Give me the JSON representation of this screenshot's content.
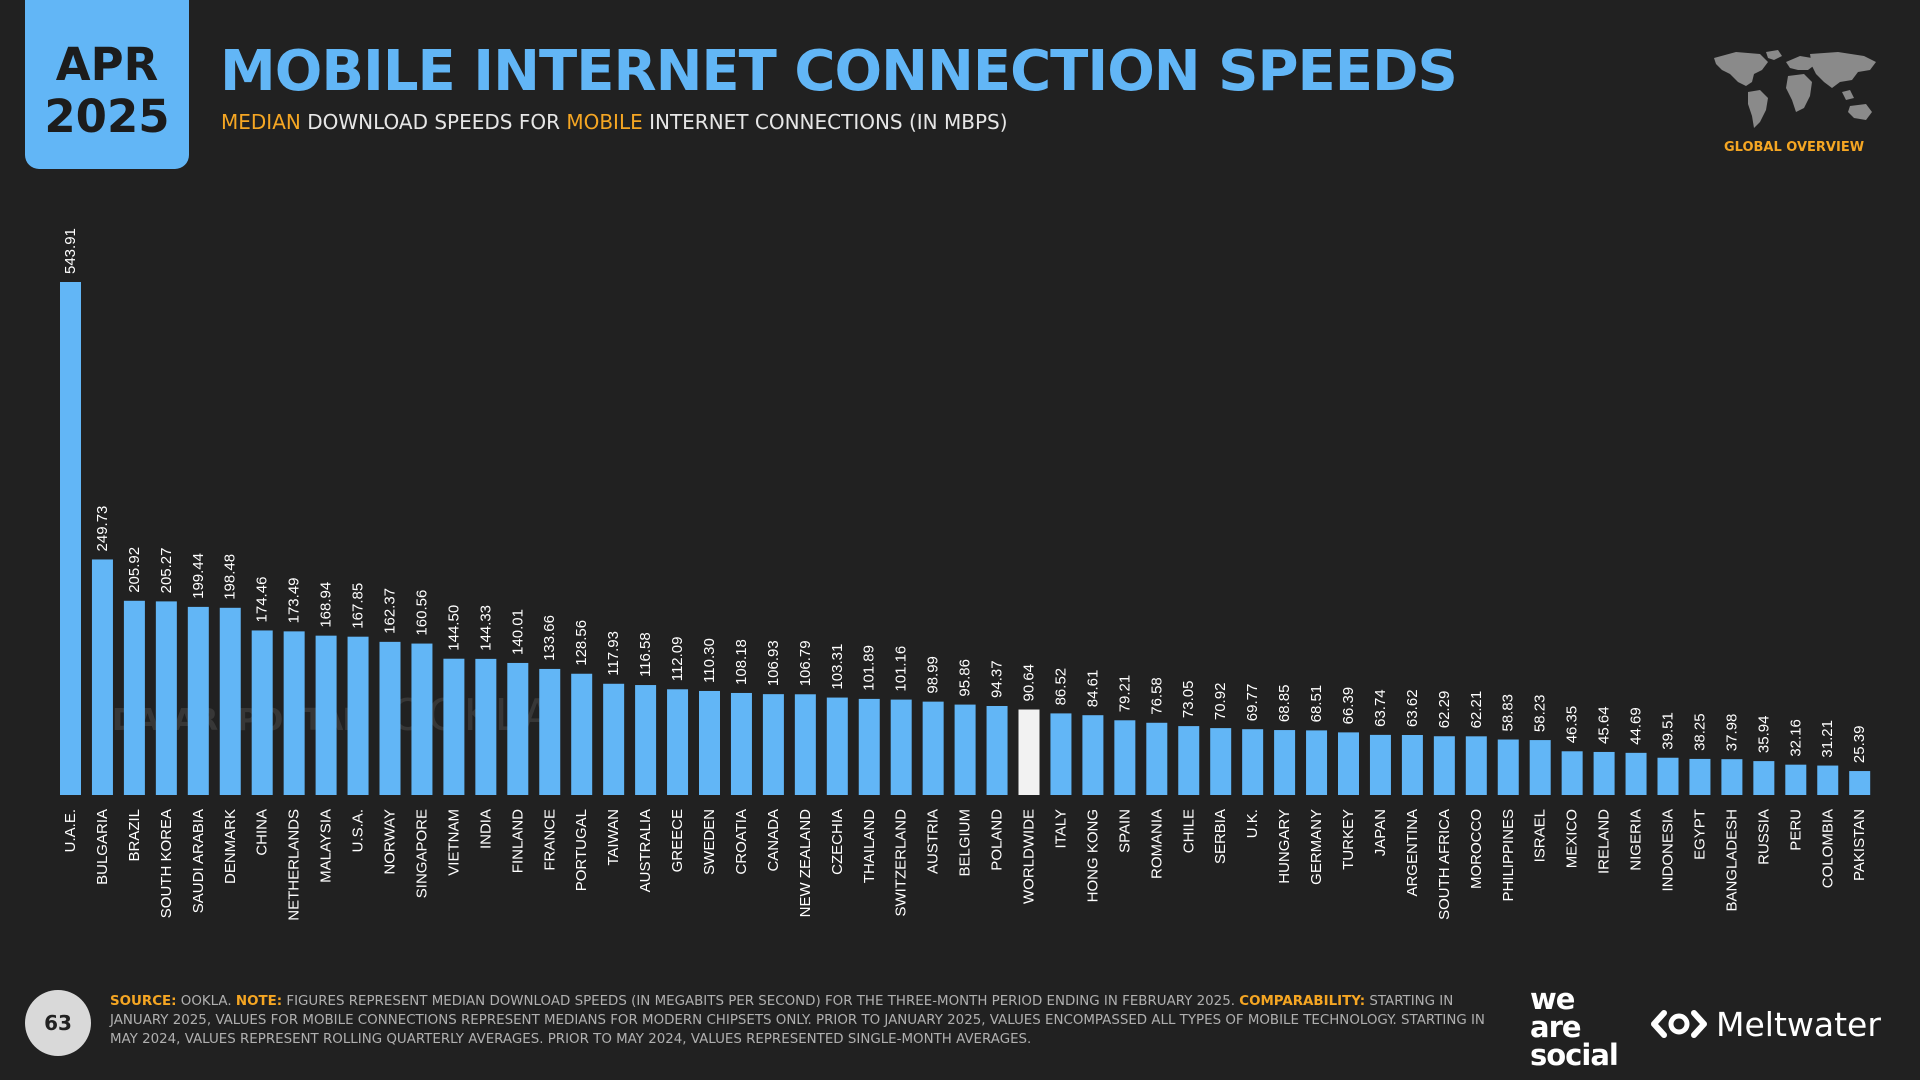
{
  "header": {
    "date_month": "APR",
    "date_year": "2025",
    "title": "MOBILE INTERNET CONNECTION SPEEDS",
    "subtitle_parts": {
      "hl1": "MEDIAN",
      "t1": " DOWNLOAD SPEEDS FOR ",
      "hl2": "MOBILE",
      "t2": " INTERNET CONNECTIONS (IN MBPS)"
    },
    "section_label": "GLOBAL OVERVIEW"
  },
  "watermarks": {
    "datareportal": "DATAREPORTAL",
    "ookla": "OOKLA"
  },
  "footer": {
    "page_number": "63",
    "source_label": "SOURCE:",
    "source_text": " OOKLA. ",
    "note_label": "NOTE:",
    "note_text": " FIGURES REPRESENT MEDIAN DOWNLOAD SPEEDS (IN MEGABITS PER SECOND) FOR THE THREE-MONTH PERIOD ENDING IN FEBRUARY 2025. ",
    "comparability_label": "COMPARABILITY:",
    "comparability_text": " STARTING IN JANUARY 2025, VALUES FOR MOBILE CONNECTIONS REPRESENT MEDIANS FOR MODERN CHIPSETS ONLY. PRIOR TO JANUARY 2025, VALUES ENCOMPASSED ALL TYPES OF MOBILE TECHNOLOGY. STARTING IN MAY 2024, VALUES REPRESENT ROLLING QUARTERLY AVERAGES. PRIOR TO MAY 2024, VALUES REPRESENTED SINGLE-MONTH AVERAGES.",
    "brand1_line1": "we",
    "brand1_line2": "are",
    "brand1_line3": "social",
    "brand2": "Meltwater"
  },
  "colors": {
    "background": "#212121",
    "bar": "#62b6f6",
    "highlight_bar": "#f2f2f2",
    "accent": "#f5a623",
    "text": "#ffffff"
  },
  "icons": [
    "world-map-icon",
    "meltwater-logo-icon"
  ],
  "chart_data": {
    "type": "bar",
    "categories": [
      "U.A.E.",
      "BULGARIA",
      "BRAZIL",
      "SOUTH KOREA",
      "SAUDI ARABIA",
      "DENMARK",
      "CHINA",
      "NETHERLANDS",
      "MALAYSIA",
      "U.S.A.",
      "NORWAY",
      "SINGAPORE",
      "VIETNAM",
      "INDIA",
      "FINLAND",
      "FRANCE",
      "PORTUGAL",
      "TAIWAN",
      "AUSTRALIA",
      "GREECE",
      "SWEDEN",
      "CROATIA",
      "CANADA",
      "NEW ZEALAND",
      "CZECHIA",
      "THAILAND",
      "SWITZERLAND",
      "AUSTRIA",
      "BELGIUM",
      "POLAND",
      "WORLDWIDE",
      "ITALY",
      "HONG KONG",
      "SPAIN",
      "ROMANIA",
      "CHILE",
      "SERBIA",
      "U.K.",
      "HUNGARY",
      "GERMANY",
      "TURKEY",
      "JAPAN",
      "ARGENTINA",
      "SOUTH AFRICA",
      "MOROCCO",
      "PHILIPPINES",
      "ISRAEL",
      "MEXICO",
      "IRELAND",
      "NIGERIA",
      "INDONESIA",
      "EGYPT",
      "BANGLADESH",
      "RUSSIA",
      "PERU",
      "COLOMBIA",
      "PAKISTAN"
    ],
    "values": [
      543.91,
      249.73,
      205.92,
      205.27,
      199.44,
      198.48,
      174.46,
      173.49,
      168.94,
      167.85,
      162.37,
      160.56,
      144.5,
      144.33,
      140.01,
      133.66,
      128.56,
      117.93,
      116.58,
      112.09,
      110.3,
      108.18,
      106.93,
      106.79,
      103.31,
      101.89,
      101.16,
      98.99,
      95.86,
      94.37,
      90.64,
      86.52,
      84.61,
      79.21,
      76.58,
      73.05,
      70.92,
      69.77,
      68.85,
      68.51,
      66.39,
      63.74,
      63.62,
      62.29,
      62.21,
      58.83,
      58.23,
      46.35,
      45.64,
      44.69,
      39.51,
      38.25,
      37.98,
      35.94,
      32.16,
      31.21,
      25.39
    ],
    "value_labels": [
      "543.91",
      "249.73",
      "205.92",
      "205.27",
      "199.44",
      "198.48",
      "174.46",
      "173.49",
      "168.94",
      "167.85",
      "162.37",
      "160.56",
      "144.50",
      "144.33",
      "140.01",
      "133.66",
      "128.56",
      "117.93",
      "116.58",
      "112.09",
      "110.30",
      "108.18",
      "106.93",
      "106.79",
      "103.31",
      "101.89",
      "101.16",
      "98.99",
      "95.86",
      "94.37",
      "90.64",
      "86.52",
      "84.61",
      "79.21",
      "76.58",
      "73.05",
      "70.92",
      "69.77",
      "68.85",
      "68.51",
      "66.39",
      "63.74",
      "63.62",
      "62.29",
      "62.21",
      "58.83",
      "58.23",
      "46.35",
      "45.64",
      "44.69",
      "39.51",
      "38.25",
      "37.98",
      "35.94",
      "32.16",
      "31.21",
      "25.39"
    ],
    "highlight_category": "WORLDWIDE",
    "ylim": [
      0,
      543.91
    ],
    "grid": false,
    "legend": "none"
  }
}
